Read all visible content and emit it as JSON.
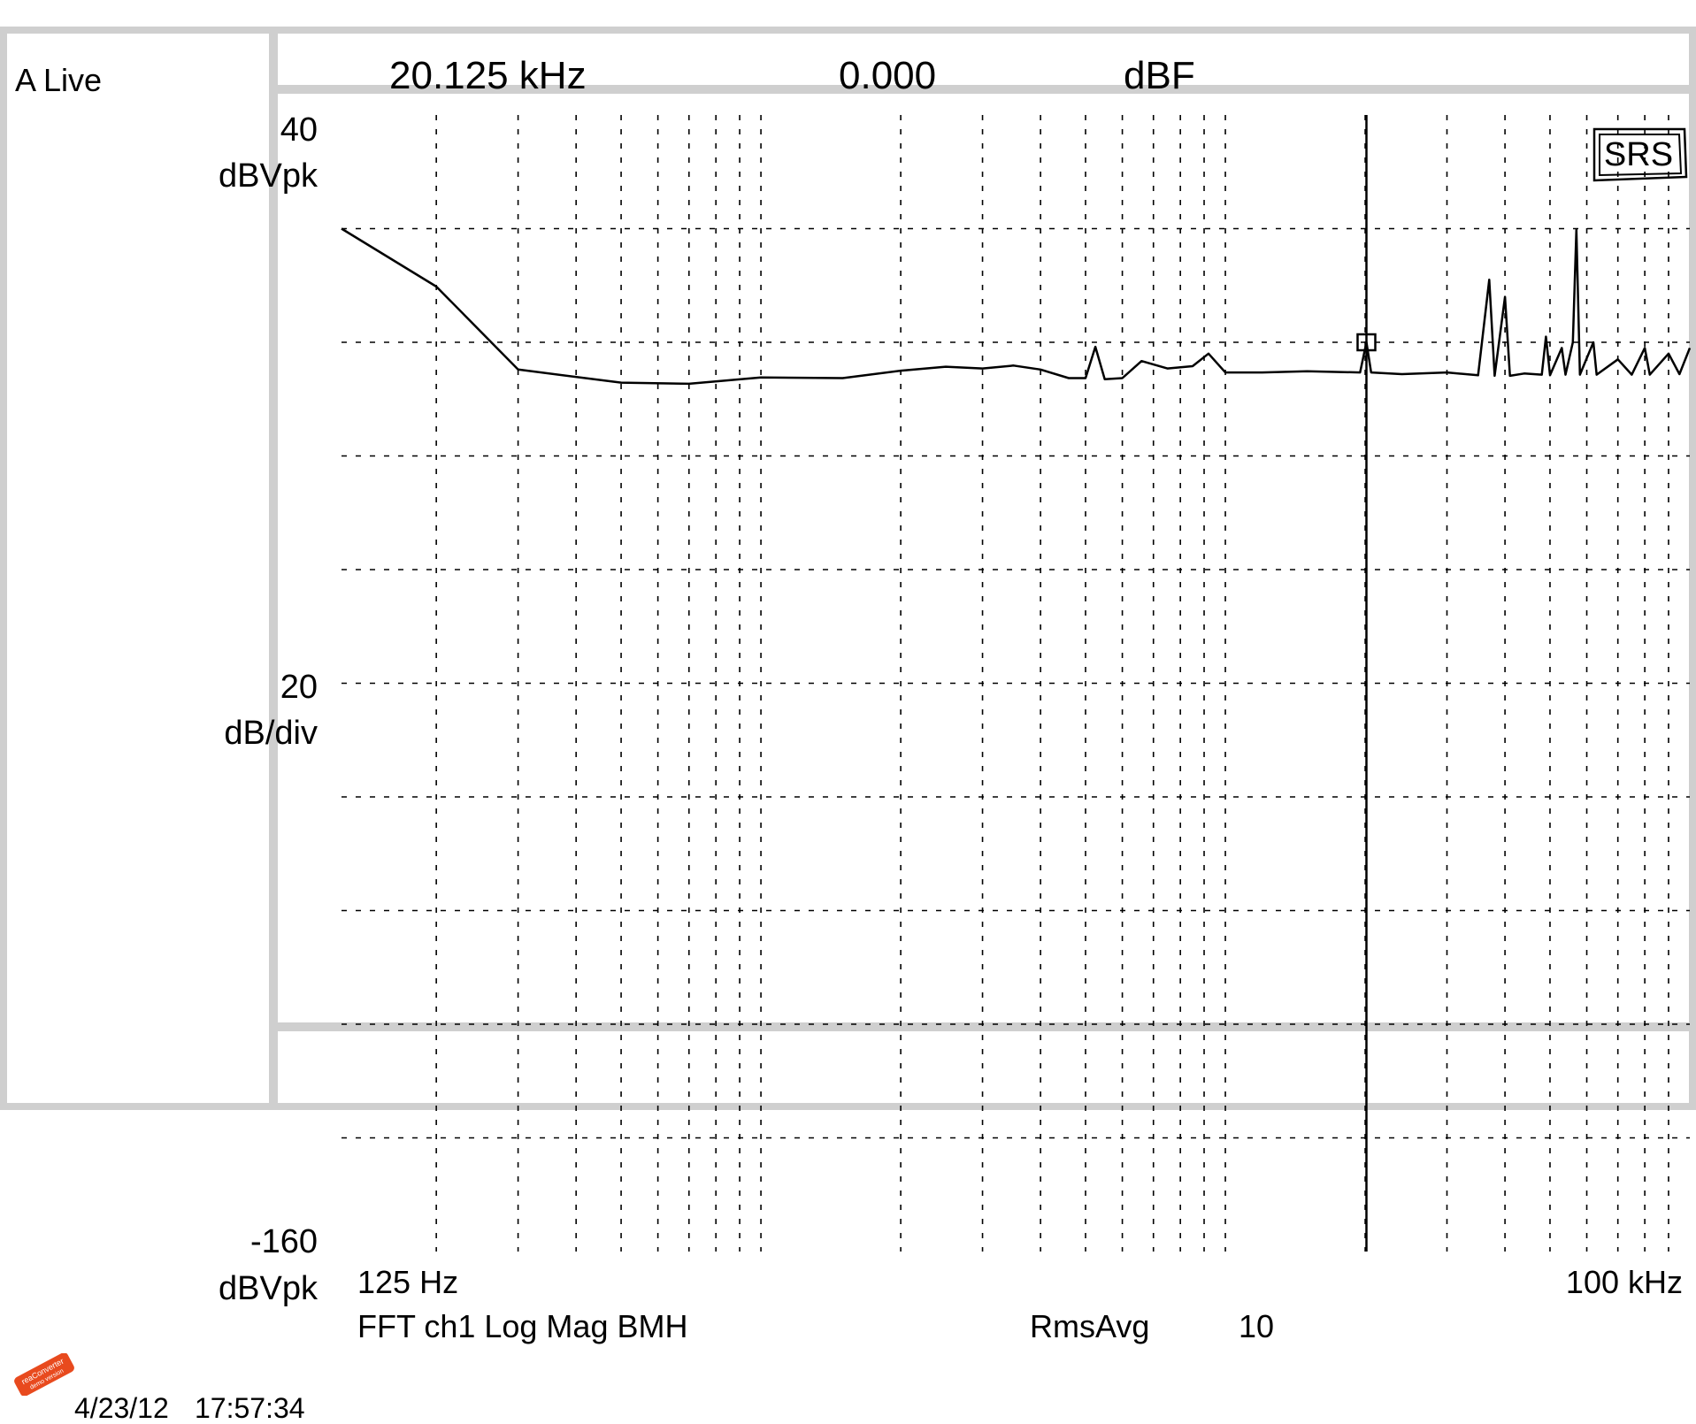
{
  "colors": {
    "trace": "#000000",
    "grid": "#000000",
    "frame": "#cfcfcf",
    "logo": "#e84a1e"
  },
  "left_panel": {
    "trace_label": "A Live",
    "y_top_value": "40",
    "y_top_unit": "dBVpk",
    "y_scale_value": "20",
    "y_scale_unit": "dB/div",
    "y_bottom_value": "-160",
    "y_bottom_unit": "dBVpk"
  },
  "header": {
    "marker_freq": "20.125 kHz",
    "marker_value": "0.000",
    "marker_unit": "dBF"
  },
  "footer": {
    "x_start": "125 Hz",
    "x_end": "100 kHz",
    "measurement": "FFT ch1 Log Mag BMH",
    "avg_label": "RmsAvg",
    "avg_count": "10"
  },
  "badge": {
    "text": "SRS"
  },
  "timestamp": {
    "date": "4/23/12",
    "time": "17:57:34"
  },
  "watermark": {
    "line1": "reaConverter",
    "line2": "demo version",
    "icon": "converter-logo-icon"
  },
  "chart_data": {
    "type": "line",
    "x_scale": "log",
    "xlim": [
      125,
      100000
    ],
    "ylim": [
      -160,
      40
    ],
    "grid": true,
    "marker": {
      "x": 20125,
      "y": 0.0
    },
    "series": [
      {
        "points": [
          [
            125,
            20.0
          ],
          [
            200,
            9.8
          ],
          [
            300,
            -4.8
          ],
          [
            500,
            -7.1
          ],
          [
            700,
            -7.3
          ],
          [
            1000,
            -6.2
          ],
          [
            1500,
            -6.3
          ],
          [
            2000,
            -5.0
          ],
          [
            2500,
            -4.3
          ],
          [
            3000,
            -4.6
          ],
          [
            3500,
            -4.1
          ],
          [
            4000,
            -4.8
          ],
          [
            4600,
            -6.3
          ],
          [
            5000,
            -6.3
          ],
          [
            5250,
            -0.8
          ],
          [
            5500,
            -6.5
          ],
          [
            6000,
            -6.3
          ],
          [
            6600,
            -3.3
          ],
          [
            7500,
            -4.6
          ],
          [
            8500,
            -4.2
          ],
          [
            9200,
            -2.0
          ],
          [
            10000,
            -5.3
          ],
          [
            12000,
            -5.3
          ],
          [
            15000,
            -5.1
          ],
          [
            19500,
            -5.3
          ],
          [
            20125,
            0.0
          ],
          [
            20600,
            -5.3
          ],
          [
            24000,
            -5.6
          ],
          [
            30000,
            -5.3
          ],
          [
            35000,
            -5.8
          ],
          [
            37000,
            11.0
          ],
          [
            38000,
            -5.9
          ],
          [
            40000,
            8.0
          ],
          [
            41000,
            -5.9
          ],
          [
            44000,
            -5.5
          ],
          [
            48000,
            -5.7
          ],
          [
            49000,
            1.0
          ],
          [
            50000,
            -5.8
          ],
          [
            53000,
            -1.0
          ],
          [
            54000,
            -5.7
          ],
          [
            56000,
            0.0
          ],
          [
            57000,
            19.8
          ],
          [
            58000,
            -5.7
          ],
          [
            62000,
            0.0
          ],
          [
            63000,
            -5.7
          ],
          [
            70000,
            -3.0
          ],
          [
            75000,
            -5.7
          ],
          [
            80000,
            -1.0
          ],
          [
            82000,
            -5.7
          ],
          [
            90000,
            -2.0
          ],
          [
            95000,
            -5.6
          ],
          [
            100000,
            -1.0
          ]
        ]
      }
    ]
  }
}
